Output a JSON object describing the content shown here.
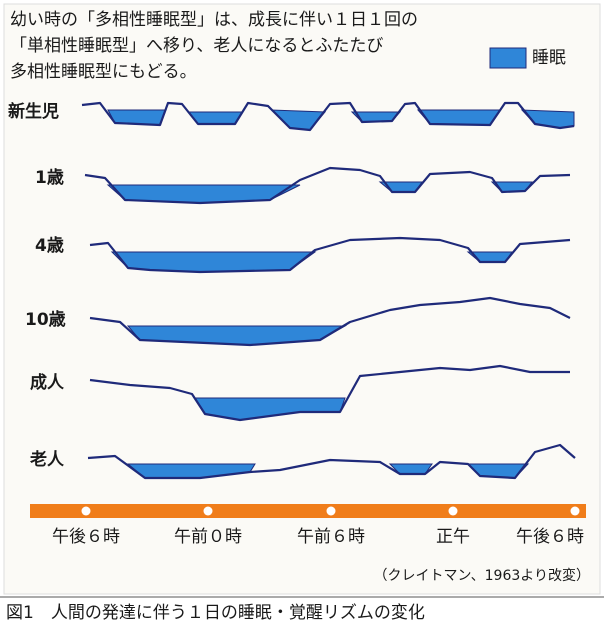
{
  "header": {
    "title_lines": [
      "幼い時の「多相性睡眠型」は、成長に伴い１日１回の",
      "「単相性睡眠型」へ移り、老人になるとふたたび",
      "多相性睡眠型にもどる。"
    ],
    "legend": "睡眠"
  },
  "rows": [
    "新生児",
    "1歳",
    "4歳",
    "10歳",
    "成人",
    "老人"
  ],
  "times": [
    "午後６時",
    "午前０時",
    "午前６時",
    "正午",
    "午後６時"
  ],
  "source": "（クレイトマン、1963より改変）",
  "caption": "図1　人間の発達に伴う１日の睡眠・覚醒リズムの変化"
}
